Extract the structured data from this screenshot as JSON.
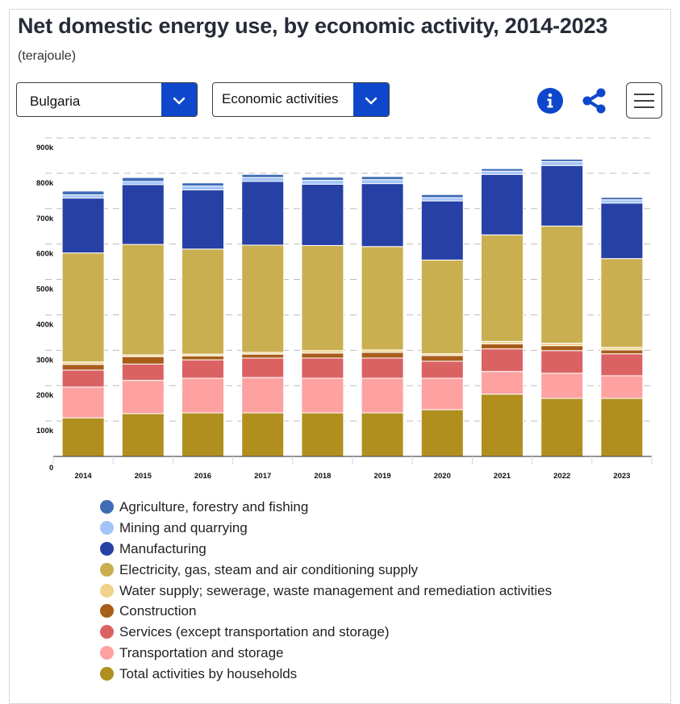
{
  "header": {
    "title": "Net domestic energy use, by economic activity, 2014-2023",
    "subtitle": "(terajoule)"
  },
  "controls": {
    "country_select": {
      "value": "Bulgaria",
      "icon": "chevron-down-icon"
    },
    "dimension_select": {
      "value": "Economic activities",
      "icon": "chevron-down-icon"
    },
    "info_icon": "info-icon",
    "share_icon": "share-icon",
    "menu_icon": "hamburger-menu-icon",
    "accent_color": "#0e47cb"
  },
  "chart_data": {
    "type": "bar",
    "stacked": true,
    "title": "Net domestic energy use, by economic activity, 2014-2023",
    "subtitle": "(terajoule)",
    "xlabel": "",
    "ylabel": "",
    "categories": [
      "2014",
      "2015",
      "2016",
      "2017",
      "2018",
      "2019",
      "2020",
      "2021",
      "2022",
      "2023"
    ],
    "ylim": [
      0,
      900000
    ],
    "yticks": [
      0,
      100000,
      200000,
      300000,
      400000,
      500000,
      600000,
      700000,
      800000,
      900000
    ],
    "ytick_labels": [
      "0",
      "100k",
      "200k",
      "300k",
      "400k",
      "500k",
      "600k",
      "700k",
      "800k",
      "900k"
    ],
    "grid": true,
    "legend_position": "bottom",
    "series": [
      {
        "name": "Total activities by households",
        "color": "#b08f1f",
        "values": [
          109000,
          121000,
          123000,
          123000,
          123000,
          123000,
          132000,
          176000,
          164000,
          164000
        ]
      },
      {
        "name": "Transportation and storage",
        "color": "#fea1a1",
        "values": [
          87000,
          94000,
          98000,
          100000,
          98000,
          98000,
          89000,
          64000,
          71000,
          64000
        ]
      },
      {
        "name": "Services (except transportation and storage)",
        "color": "#da6263",
        "values": [
          48000,
          46000,
          52000,
          55000,
          57000,
          57000,
          48000,
          64000,
          64000,
          62000
        ]
      },
      {
        "name": "Construction",
        "color": "#a85d1a",
        "values": [
          16000,
          21000,
          11000,
          11000,
          14000,
          16000,
          16000,
          14000,
          14000,
          11000
        ]
      },
      {
        "name": "Water supply; sewerage, waste management and remediation activities",
        "color": "#f0d28c",
        "values": [
          7000,
          5000,
          5000,
          5000,
          7000,
          7000,
          5000,
          7000,
          7000,
          7000
        ]
      },
      {
        "name": "Electricity, gas, steam and air conditioning supply",
        "color": "#c9af50",
        "values": [
          308000,
          312000,
          297000,
          303000,
          297000,
          292000,
          265000,
          301000,
          331000,
          251000
        ]
      },
      {
        "name": "Manufacturing",
        "color": "#2640a5",
        "values": [
          155000,
          169000,
          167000,
          180000,
          173000,
          178000,
          167000,
          171000,
          171000,
          157000
        ]
      },
      {
        "name": "Mining and quarrying",
        "color": "#a2c4f8",
        "values": [
          9000,
          9000,
          11000,
          11000,
          11000,
          11000,
          9000,
          9000,
          11000,
          9000
        ]
      },
      {
        "name": "Agriculture, forestry and fishing",
        "color": "#3f6cb5",
        "values": [
          11000,
          11000,
          9000,
          9000,
          9000,
          9000,
          9000,
          7000,
          7000,
          7000
        ]
      }
    ]
  },
  "legend": {
    "items": [
      {
        "label": "Agriculture, forestry and fishing",
        "color": "#3f6cb5"
      },
      {
        "label": "Mining and quarrying",
        "color": "#a2c4f8"
      },
      {
        "label": "Manufacturing",
        "color": "#2640a5"
      },
      {
        "label": "Electricity, gas, steam and air conditioning supply",
        "color": "#c9af50"
      },
      {
        "label": "Water supply; sewerage, waste management and remediation activities",
        "color": "#f0d28c"
      },
      {
        "label": "Construction",
        "color": "#a85d1a"
      },
      {
        "label": "Services (except transportation and storage)",
        "color": "#da6263"
      },
      {
        "label": "Transportation and storage",
        "color": "#fea1a1"
      },
      {
        "label": "Total activities by households",
        "color": "#b08f1f"
      }
    ]
  }
}
